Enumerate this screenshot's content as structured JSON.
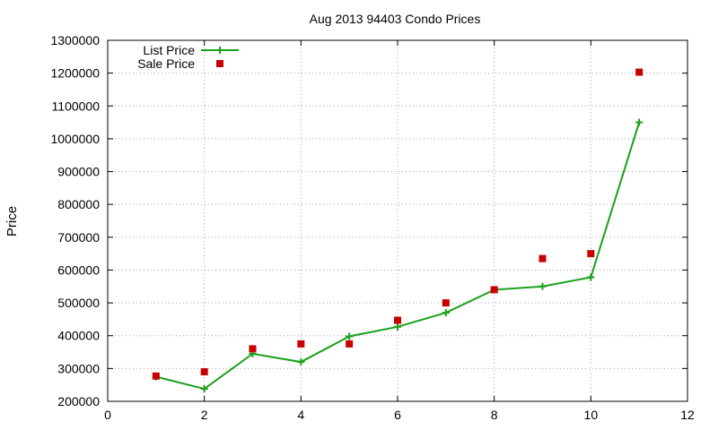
{
  "chart_data": {
    "type": "line",
    "title": "Aug 2013 94403 Condo Prices",
    "xlabel": "",
    "ylabel": "Price",
    "xlim": [
      0,
      12
    ],
    "ylim": [
      200000,
      1300000
    ],
    "xticks": [
      0,
      2,
      4,
      6,
      8,
      10,
      12
    ],
    "yticks": [
      200000,
      300000,
      400000,
      500000,
      600000,
      700000,
      800000,
      900000,
      1000000,
      1100000,
      1200000,
      1300000
    ],
    "grid": true,
    "legend_position": "top-left",
    "series": [
      {
        "name": "List Price",
        "style": "line-with-plus-markers",
        "color": "#1aa01a",
        "x": [
          1,
          2,
          3,
          4,
          5,
          6,
          7,
          8,
          9,
          10,
          11
        ],
        "y": [
          275000,
          238000,
          345000,
          320000,
          398000,
          427000,
          470000,
          540000,
          550000,
          578000,
          1050000
        ]
      },
      {
        "name": "Sale Price",
        "style": "square-markers",
        "color": "#c80000",
        "x": [
          1,
          2,
          3,
          4,
          5,
          6,
          7,
          8,
          9,
          10,
          11
        ],
        "y": [
          277000,
          290000,
          360000,
          375000,
          375000,
          447000,
          500000,
          540000,
          635000,
          650000,
          1203000
        ]
      }
    ]
  }
}
